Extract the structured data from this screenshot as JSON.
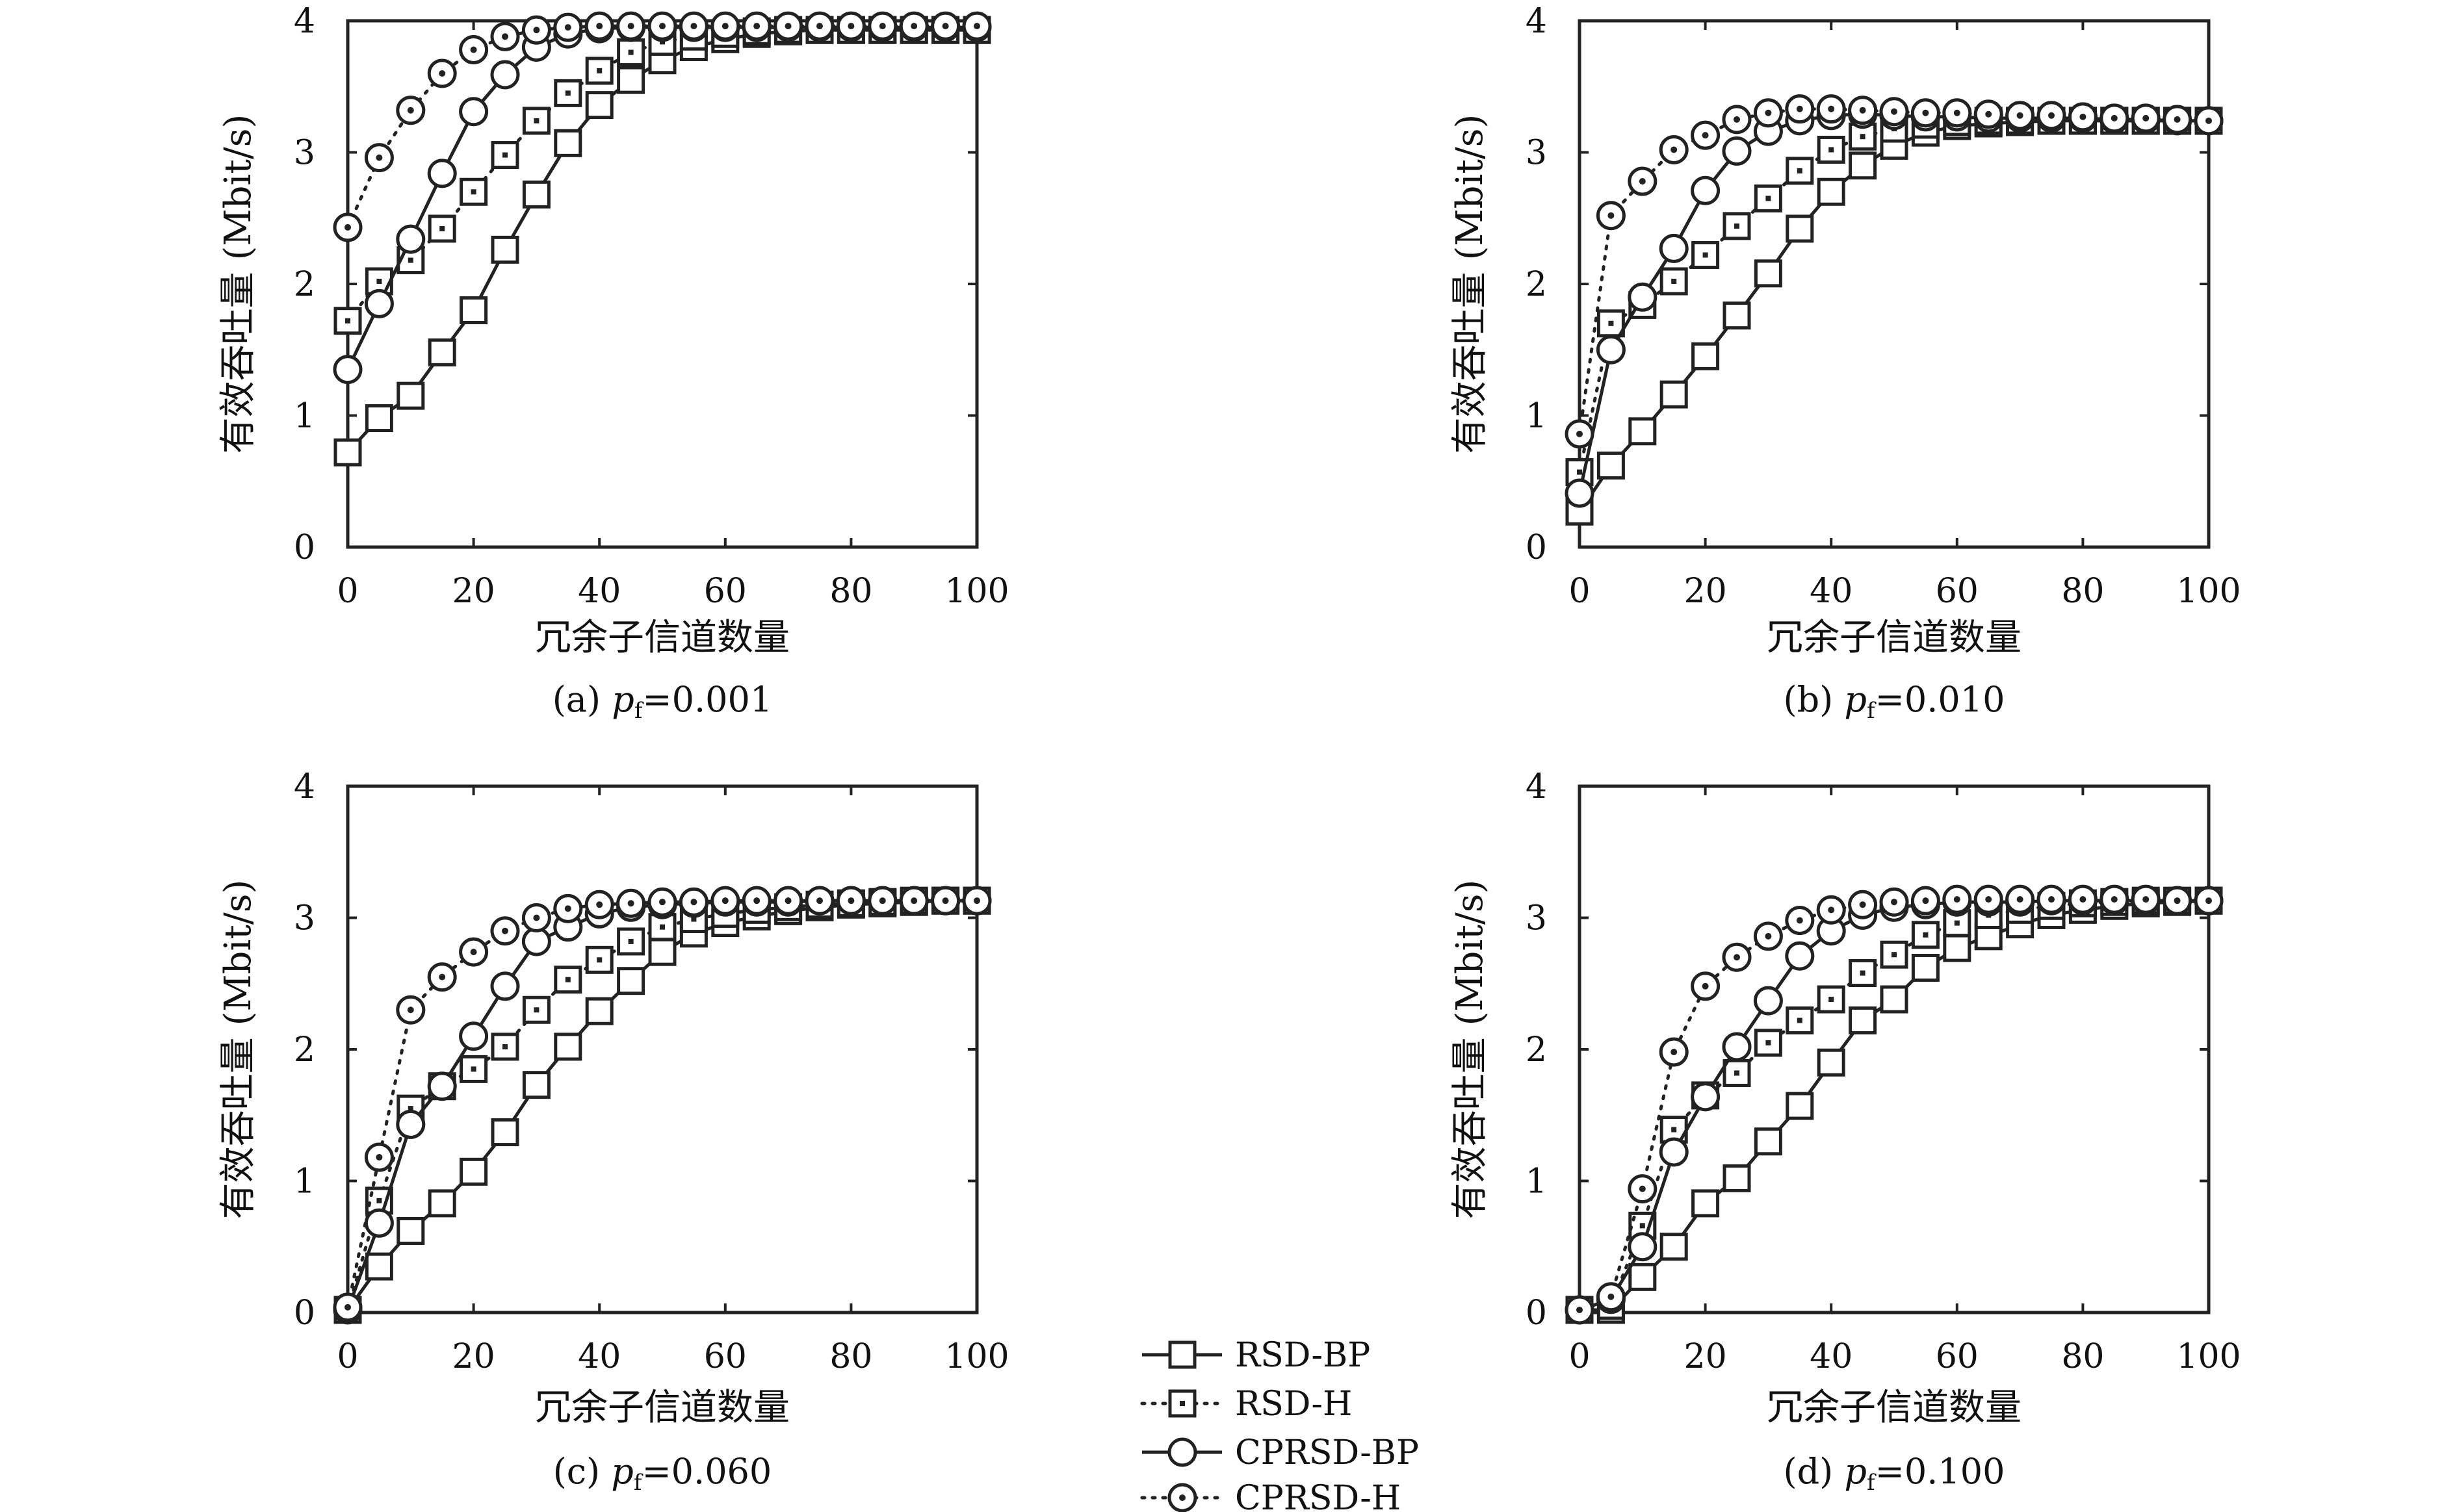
{
  "figure": {
    "legend": {
      "entries": [
        {
          "label": "RSD-BP",
          "marker": "square",
          "line": "solid"
        },
        {
          "label": "RSD-H",
          "marker": "square",
          "line": "dotted"
        },
        {
          "label": "CPRSD-BP",
          "marker": "circle",
          "line": "solid"
        },
        {
          "label": "CPRSD-H",
          "marker": "circle-dot",
          "line": "dotted"
        }
      ]
    },
    "colors": {
      "ink": "#222222",
      "background": "#ffffff"
    }
  },
  "chart_data": [
    {
      "type": "line",
      "caption": "(a) p_f=0.001",
      "caption_prefix": "(a) ",
      "caption_var": "p",
      "caption_sub": "f",
      "caption_value": "=0.001",
      "xlabel": "冗余子信道数量",
      "ylabel": "有效吞吐量 (Mbit/s)",
      "xlim": [
        0,
        100
      ],
      "ylim": [
        0,
        4
      ],
      "xticks": [
        "0",
        "20",
        "40",
        "60",
        "80",
        "100"
      ],
      "yticks": [
        "0",
        "1",
        "2",
        "3",
        "4"
      ],
      "x": [
        0,
        5,
        10,
        15,
        20,
        25,
        30,
        35,
        40,
        45,
        50,
        55,
        60,
        65,
        70,
        75,
        80,
        85,
        90,
        95,
        100
      ],
      "series": [
        {
          "name": "RSD-BP",
          "values": [
            0.72,
            0.98,
            1.15,
            1.48,
            1.8,
            2.26,
            2.68,
            3.07,
            3.36,
            3.55,
            3.7,
            3.8,
            3.86,
            3.9,
            3.92,
            3.93,
            3.93,
            3.93,
            3.93,
            3.93,
            3.93
          ]
        },
        {
          "name": "RSD-H",
          "values": [
            1.72,
            2.02,
            2.18,
            2.42,
            2.7,
            2.98,
            3.24,
            3.45,
            3.62,
            3.76,
            3.84,
            3.88,
            3.9,
            3.92,
            3.93,
            3.93,
            3.93,
            3.93,
            3.93,
            3.93,
            3.93
          ]
        },
        {
          "name": "CPRSD-BP",
          "values": [
            1.35,
            1.85,
            2.34,
            2.84,
            3.31,
            3.59,
            3.8,
            3.9,
            3.94,
            3.95,
            3.95,
            3.95,
            3.95,
            3.95,
            3.95,
            3.95,
            3.95,
            3.95,
            3.95,
            3.95,
            3.95
          ]
        },
        {
          "name": "CPRSD-H",
          "values": [
            2.43,
            2.96,
            3.32,
            3.6,
            3.78,
            3.88,
            3.93,
            3.95,
            3.96,
            3.96,
            3.96,
            3.96,
            3.96,
            3.96,
            3.96,
            3.96,
            3.96,
            3.96,
            3.96,
            3.96,
            3.96
          ]
        }
      ]
    },
    {
      "type": "line",
      "caption": "(b) p_f=0.010",
      "caption_prefix": "(b) ",
      "caption_var": "p",
      "caption_sub": "f",
      "caption_value": "=0.010",
      "xlabel": "冗余子信道数量",
      "ylabel": "有效吞吐量 (Mbit/s)",
      "xlim": [
        0,
        100
      ],
      "ylim": [
        0,
        4
      ],
      "xticks": [
        "0",
        "20",
        "40",
        "60",
        "80",
        "100"
      ],
      "yticks": [
        "0",
        "1",
        "2",
        "3",
        "4"
      ],
      "x": [
        0,
        5,
        10,
        15,
        20,
        25,
        30,
        35,
        40,
        45,
        50,
        55,
        60,
        65,
        70,
        75,
        80,
        85,
        90,
        95,
        100
      ],
      "series": [
        {
          "name": "RSD-BP",
          "values": [
            0.27,
            0.62,
            0.88,
            1.16,
            1.45,
            1.76,
            2.08,
            2.42,
            2.7,
            2.9,
            3.05,
            3.15,
            3.2,
            3.22,
            3.23,
            3.24,
            3.24,
            3.24,
            3.24,
            3.24,
            3.24
          ]
        },
        {
          "name": "RSD-H",
          "values": [
            0.57,
            1.7,
            1.84,
            2.02,
            2.22,
            2.44,
            2.65,
            2.86,
            3.02,
            3.12,
            3.18,
            3.21,
            3.23,
            3.24,
            3.24,
            3.24,
            3.24,
            3.24,
            3.24,
            3.24,
            3.24
          ]
        },
        {
          "name": "CPRSD-BP",
          "values": [
            0.41,
            1.5,
            1.9,
            2.27,
            2.71,
            3.01,
            3.16,
            3.24,
            3.28,
            3.29,
            3.28,
            3.27,
            3.27,
            3.26,
            3.26,
            3.26,
            3.26,
            3.25,
            3.25,
            3.24,
            3.24
          ]
        },
        {
          "name": "CPRSD-H",
          "values": [
            0.86,
            2.52,
            2.78,
            3.02,
            3.13,
            3.25,
            3.3,
            3.33,
            3.33,
            3.32,
            3.31,
            3.3,
            3.3,
            3.29,
            3.28,
            3.28,
            3.27,
            3.26,
            3.26,
            3.25,
            3.24
          ]
        }
      ]
    },
    {
      "type": "line",
      "caption": "(c) p_f=0.060",
      "caption_prefix": "(c) ",
      "caption_var": "p",
      "caption_sub": "f",
      "caption_value": "=0.060",
      "xlabel": "冗余子信道数量",
      "ylabel": "有效吞吐量 (Mbit/s)",
      "xlim": [
        0,
        100
      ],
      "ylim": [
        0,
        4
      ],
      "xticks": [
        "0",
        "20",
        "40",
        "60",
        "80",
        "100"
      ],
      "yticks": [
        "0",
        "1",
        "2",
        "3",
        "4"
      ],
      "x": [
        0,
        5,
        10,
        15,
        20,
        25,
        30,
        35,
        40,
        45,
        50,
        55,
        60,
        65,
        70,
        75,
        80,
        85,
        90,
        95,
        100
      ],
      "series": [
        {
          "name": "RSD-BP",
          "values": [
            0.02,
            0.35,
            0.62,
            0.83,
            1.07,
            1.37,
            1.73,
            2.02,
            2.29,
            2.52,
            2.74,
            2.88,
            2.96,
            3.01,
            3.05,
            3.08,
            3.1,
            3.11,
            3.12,
            3.13,
            3.13
          ]
        },
        {
          "name": "RSD-H",
          "values": [
            0.02,
            0.85,
            1.55,
            1.72,
            1.85,
            2.02,
            2.3,
            2.53,
            2.68,
            2.82,
            2.93,
            2.99,
            3.03,
            3.06,
            3.08,
            3.1,
            3.11,
            3.12,
            3.13,
            3.13,
            3.13
          ]
        },
        {
          "name": "CPRSD-BP",
          "values": [
            0.02,
            0.68,
            1.43,
            1.72,
            2.1,
            2.48,
            2.82,
            2.93,
            3.03,
            3.08,
            3.1,
            3.11,
            3.12,
            3.12,
            3.12,
            3.13,
            3.13,
            3.13,
            3.13,
            3.13,
            3.13
          ]
        },
        {
          "name": "CPRSD-H",
          "values": [
            0.04,
            1.18,
            2.3,
            2.55,
            2.74,
            2.9,
            3.0,
            3.07,
            3.1,
            3.11,
            3.12,
            3.12,
            3.13,
            3.13,
            3.13,
            3.13,
            3.13,
            3.13,
            3.13,
            3.13,
            3.13
          ]
        }
      ]
    },
    {
      "type": "line",
      "caption": "(d) p_f=0.100",
      "caption_prefix": "(d) ",
      "caption_var": "p",
      "caption_sub": "f",
      "caption_value": "=0.100",
      "xlabel": "冗余子信道数量",
      "ylabel": "有效吞吐量 (Mbit/s)",
      "xlim": [
        0,
        100
      ],
      "ylim": [
        0,
        4
      ],
      "xticks": [
        "0",
        "20",
        "40",
        "60",
        "80",
        "100"
      ],
      "yticks": [
        "0",
        "1",
        "2",
        "3",
        "4"
      ],
      "x": [
        0,
        5,
        10,
        15,
        20,
        25,
        30,
        35,
        40,
        45,
        50,
        55,
        60,
        65,
        70,
        75,
        80,
        85,
        90,
        95,
        100
      ],
      "series": [
        {
          "name": "RSD-BP",
          "values": [
            0.02,
            0.02,
            0.27,
            0.5,
            0.83,
            1.02,
            1.3,
            1.57,
            1.9,
            2.22,
            2.38,
            2.62,
            2.77,
            2.86,
            2.95,
            3.02,
            3.06,
            3.09,
            3.11,
            3.12,
            3.13
          ]
        },
        {
          "name": "RSD-H",
          "values": [
            0.02,
            0.05,
            0.66,
            1.39,
            1.65,
            1.82,
            2.05,
            2.22,
            2.38,
            2.58,
            2.72,
            2.87,
            2.96,
            3.02,
            3.06,
            3.09,
            3.11,
            3.12,
            3.13,
            3.13,
            3.13
          ]
        },
        {
          "name": "CPRSD-BP",
          "values": [
            0.02,
            0.1,
            0.5,
            1.22,
            1.64,
            2.02,
            2.37,
            2.71,
            2.9,
            3.02,
            3.08,
            3.1,
            3.12,
            3.12,
            3.12,
            3.13,
            3.13,
            3.13,
            3.13,
            3.13,
            3.13
          ]
        },
        {
          "name": "CPRSD-H",
          "values": [
            0.02,
            0.12,
            0.94,
            1.98,
            2.48,
            2.7,
            2.86,
            2.98,
            3.06,
            3.1,
            3.12,
            3.13,
            3.14,
            3.14,
            3.14,
            3.14,
            3.14,
            3.14,
            3.14,
            3.13,
            3.13
          ]
        }
      ]
    }
  ]
}
